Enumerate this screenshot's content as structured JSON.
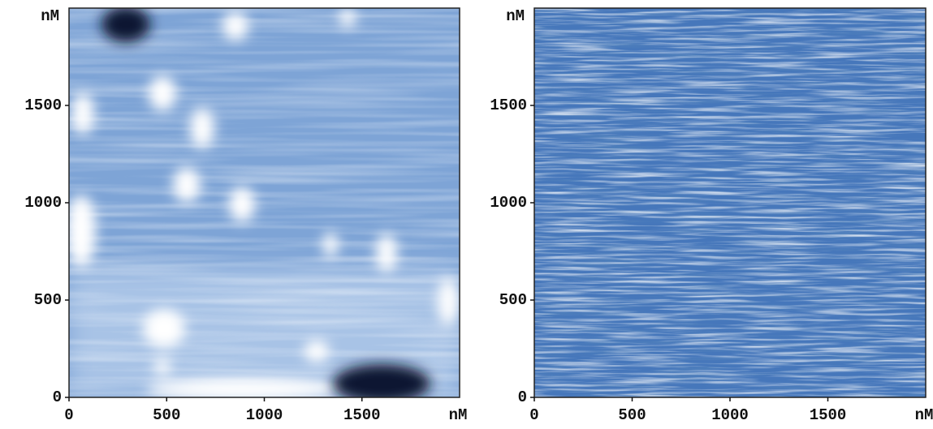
{
  "chart_data": [
    {
      "type": "image",
      "xlabel": "nM",
      "ylabel": "nM",
      "xlim": [
        0,
        2000
      ],
      "ylim": [
        0,
        2000
      ],
      "xticks": [
        0,
        500,
        1000,
        1500
      ],
      "yticks": [
        0,
        500,
        1000,
        1500
      ]
    },
    {
      "type": "image",
      "xlabel": "nM",
      "ylabel": "nM",
      "xlim": [
        0,
        2000
      ],
      "ylim": [
        0,
        2000
      ],
      "xticks": [
        0,
        500,
        1000,
        1500
      ],
      "yticks": [
        0,
        500,
        1000,
        1500
      ]
    }
  ]
}
